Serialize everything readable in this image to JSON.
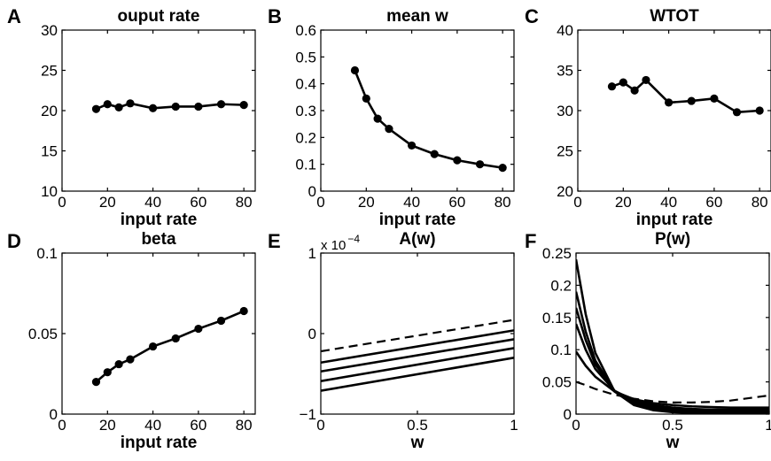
{
  "chart_data": [
    {
      "id": "A",
      "letter": "A",
      "type": "line",
      "title": "ouput rate",
      "xlabel": "input rate",
      "ylabel": "",
      "xlim": [
        0,
        85
      ],
      "ylim": [
        10,
        30
      ],
      "xticks": [
        0,
        20,
        40,
        60,
        80
      ],
      "yticks": [
        10,
        15,
        20,
        25,
        30
      ],
      "markers": true,
      "series": [
        {
          "x": [
            15,
            20,
            25,
            30,
            40,
            50,
            60,
            70,
            80
          ],
          "y": [
            20.2,
            20.8,
            20.4,
            20.9,
            20.3,
            20.5,
            20.5,
            20.8,
            20.7
          ]
        }
      ]
    },
    {
      "id": "B",
      "letter": "B",
      "type": "line",
      "title": "mean w",
      "xlabel": "input rate",
      "ylabel": "",
      "xlim": [
        0,
        85
      ],
      "ylim": [
        0,
        0.6
      ],
      "xticks": [
        0,
        20,
        40,
        60,
        80
      ],
      "yticks": [
        0,
        0.1,
        0.2,
        0.3,
        0.4,
        0.5,
        0.6
      ],
      "markers": true,
      "series": [
        {
          "x": [
            15,
            20,
            25,
            30,
            40,
            50,
            60,
            70,
            80
          ],
          "y": [
            0.45,
            0.345,
            0.27,
            0.232,
            0.17,
            0.138,
            0.115,
            0.1,
            0.087
          ]
        }
      ]
    },
    {
      "id": "C",
      "letter": "C",
      "type": "line",
      "title": "WTOT",
      "xlabel": "input rate",
      "ylabel": "",
      "xlim": [
        0,
        85
      ],
      "ylim": [
        20,
        40
      ],
      "xticks": [
        0,
        20,
        40,
        60,
        80
      ],
      "yticks": [
        20,
        25,
        30,
        35,
        40
      ],
      "markers": true,
      "series": [
        {
          "x": [
            15,
            20,
            25,
            30,
            40,
            50,
            60,
            70,
            80
          ],
          "y": [
            33.0,
            33.5,
            32.5,
            33.8,
            31.0,
            31.2,
            31.5,
            29.8,
            30.0
          ]
        }
      ]
    },
    {
      "id": "D",
      "letter": "D",
      "type": "line",
      "title": "beta",
      "xlabel": "input rate",
      "ylabel": "",
      "xlim": [
        0,
        85
      ],
      "ylim": [
        0,
        0.1
      ],
      "xticks": [
        0,
        20,
        40,
        60,
        80
      ],
      "yticks": [
        0,
        0.05,
        0.1
      ],
      "markers": true,
      "series": [
        {
          "x": [
            15,
            20,
            25,
            30,
            40,
            50,
            60,
            70,
            80
          ],
          "y": [
            0.02,
            0.026,
            0.031,
            0.034,
            0.042,
            0.047,
            0.053,
            0.058,
            0.064
          ]
        }
      ]
    },
    {
      "id": "E",
      "letter": "E",
      "type": "line",
      "title": "A(w)",
      "xlabel": "w",
      "ylabel": "",
      "xlim": [
        0,
        1
      ],
      "ylim": [
        -1,
        1
      ],
      "xticks": [
        0,
        0.5,
        1
      ],
      "yticks": [
        -1,
        0,
        1
      ],
      "y_exponent_base": "x 10",
      "y_exponent_power": "−4",
      "markers": false,
      "series": [
        {
          "dashed": true,
          "x": [
            0,
            1
          ],
          "y": [
            -0.22,
            0.17
          ]
        },
        {
          "dashed": false,
          "x": [
            0,
            1
          ],
          "y": [
            -0.36,
            0.04
          ]
        },
        {
          "dashed": false,
          "x": [
            0,
            1
          ],
          "y": [
            -0.47,
            -0.07
          ]
        },
        {
          "dashed": false,
          "x": [
            0,
            1
          ],
          "y": [
            -0.59,
            -0.18
          ]
        },
        {
          "dashed": false,
          "x": [
            0,
            1
          ],
          "y": [
            -0.71,
            -0.3
          ]
        }
      ]
    },
    {
      "id": "F",
      "letter": "F",
      "type": "line",
      "title": "P(w)",
      "xlabel": "w",
      "ylabel": "",
      "xlim": [
        0,
        1
      ],
      "ylim": [
        0,
        0.25
      ],
      "xticks": [
        0,
        0.5,
        1
      ],
      "yticks": [
        0,
        0.05,
        0.1,
        0.15,
        0.2,
        0.25
      ],
      "markers": false,
      "series": [
        {
          "dashed": true,
          "x": [
            0,
            0.05,
            0.1,
            0.2,
            0.3,
            0.4,
            0.5,
            0.6,
            0.7,
            0.8,
            0.9,
            1.0
          ],
          "y": [
            0.05,
            0.045,
            0.039,
            0.03,
            0.024,
            0.02,
            0.018,
            0.018,
            0.019,
            0.021,
            0.025,
            0.029
          ]
        },
        {
          "dashed": false,
          "x": [
            0,
            0.05,
            0.1,
            0.2,
            0.3,
            0.4,
            0.5,
            0.6,
            0.7,
            0.8,
            0.9,
            1.0
          ],
          "y": [
            0.097,
            0.075,
            0.058,
            0.035,
            0.023,
            0.017,
            0.014,
            0.012,
            0.011,
            0.01,
            0.01,
            0.01
          ]
        },
        {
          "dashed": false,
          "x": [
            0,
            0.05,
            0.1,
            0.2,
            0.3,
            0.4,
            0.5,
            0.6,
            0.7,
            0.8,
            0.9,
            1.0
          ],
          "y": [
            0.14,
            0.1,
            0.07,
            0.036,
            0.021,
            0.014,
            0.01,
            0.008,
            0.007,
            0.007,
            0.007,
            0.007
          ]
        },
        {
          "dashed": false,
          "x": [
            0,
            0.05,
            0.1,
            0.2,
            0.3,
            0.4,
            0.5,
            0.6,
            0.7,
            0.8,
            0.9,
            1.0
          ],
          "y": [
            0.165,
            0.115,
            0.077,
            0.036,
            0.019,
            0.011,
            0.008,
            0.006,
            0.005,
            0.005,
            0.005,
            0.005
          ]
        },
        {
          "dashed": false,
          "x": [
            0,
            0.05,
            0.1,
            0.2,
            0.3,
            0.4,
            0.5,
            0.6,
            0.7,
            0.8,
            0.9,
            1.0
          ],
          "y": [
            0.19,
            0.128,
            0.083,
            0.035,
            0.017,
            0.009,
            0.006,
            0.004,
            0.003,
            0.003,
            0.003,
            0.003
          ]
        },
        {
          "dashed": false,
          "x": [
            0,
            0.05,
            0.1,
            0.2,
            0.3,
            0.4,
            0.5,
            0.6,
            0.7,
            0.8,
            0.9,
            1.0
          ],
          "y": [
            0.24,
            0.155,
            0.095,
            0.035,
            0.014,
            0.006,
            0.003,
            0.002,
            0.002,
            0.002,
            0.002,
            0.002
          ]
        }
      ]
    }
  ]
}
